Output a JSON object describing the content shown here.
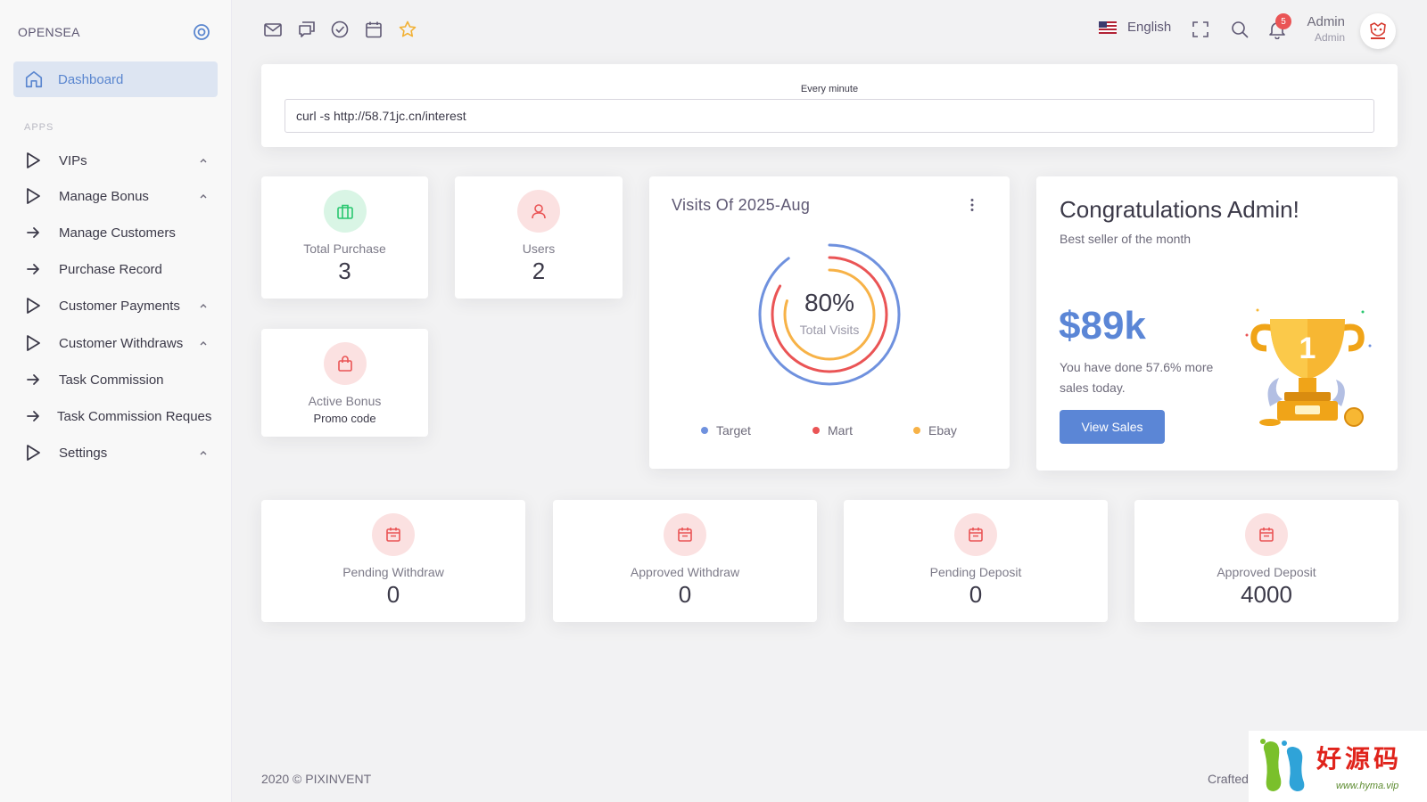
{
  "brand": "OPENSEA",
  "sidebar": {
    "active": {
      "label": "Dashboard",
      "icon": "home-icon"
    },
    "section": "APPS",
    "items": [
      {
        "label": "VIPs",
        "icon": "play-outline-icon",
        "expandable": true
      },
      {
        "label": "Manage Bonus",
        "icon": "play-outline-icon",
        "expandable": true
      },
      {
        "label": "Manage Customers",
        "icon": "arrow-right-icon",
        "expandable": false
      },
      {
        "label": "Purchase Record",
        "icon": "arrow-right-icon",
        "expandable": false
      },
      {
        "label": "Customer Payments",
        "icon": "play-outline-icon",
        "expandable": true
      },
      {
        "label": "Customer Withdraws",
        "icon": "play-outline-icon",
        "expandable": true
      },
      {
        "label": "Task Commission",
        "icon": "arrow-right-icon",
        "expandable": false
      },
      {
        "label": "Task Commission Reques",
        "icon": "arrow-right-icon",
        "expandable": false
      },
      {
        "label": "Settings",
        "icon": "play-outline-icon",
        "expandable": true
      }
    ]
  },
  "topbar": {
    "shortcuts": [
      "mail-icon",
      "chat-icon",
      "check-circle-icon",
      "calendar-icon",
      "star-icon"
    ],
    "language": "English",
    "notification_count": "5",
    "user_name": "Admin",
    "user_role": "Admin"
  },
  "cron": {
    "label": "Every minute",
    "command": "curl -s http://58.71jc.cn/interest"
  },
  "stats_top": [
    {
      "title": "Total Purchase",
      "value": "3",
      "icon": "briefcase-icon",
      "color": "#28c76f"
    },
    {
      "title": "Users",
      "value": "2",
      "icon": "user-icon",
      "color": "#ea5455"
    }
  ],
  "active_bonus": {
    "title": "Active Bonus",
    "subtitle": "Promo code",
    "icon": "shopping-bag-icon",
    "color": "#ea5455"
  },
  "visits": {
    "title": "Visits Of 2025-Aug",
    "percent": "80%",
    "caption": "Total Visits",
    "legend": [
      {
        "label": "Target",
        "color": "#6f91de"
      },
      {
        "label": "Mart",
        "color": "#ea5455"
      },
      {
        "label": "Ebay",
        "color": "#f7b247"
      }
    ]
  },
  "congrats": {
    "title": "Congratulations Admin!",
    "subtitle": "Best seller of the month",
    "amount": "$89k",
    "description": "You have done 57.6% more sales today.",
    "button": "View Sales",
    "trophy_number": "1"
  },
  "stats_bottom": [
    {
      "title": "Pending Withdraw",
      "value": "0",
      "icon": "calendar-icon"
    },
    {
      "title": "Approved Withdraw",
      "value": "0",
      "icon": "calendar-icon"
    },
    {
      "title": "Pending Deposit",
      "value": "0",
      "icon": "calendar-icon"
    },
    {
      "title": "Approved Deposit",
      "value": "4000",
      "icon": "calendar-icon"
    }
  ],
  "footer": {
    "copyright": "2020 © PIXINVENT",
    "right": "Crafted"
  },
  "watermark": {
    "text": "好源码",
    "url": "www.hyma.vip"
  }
}
